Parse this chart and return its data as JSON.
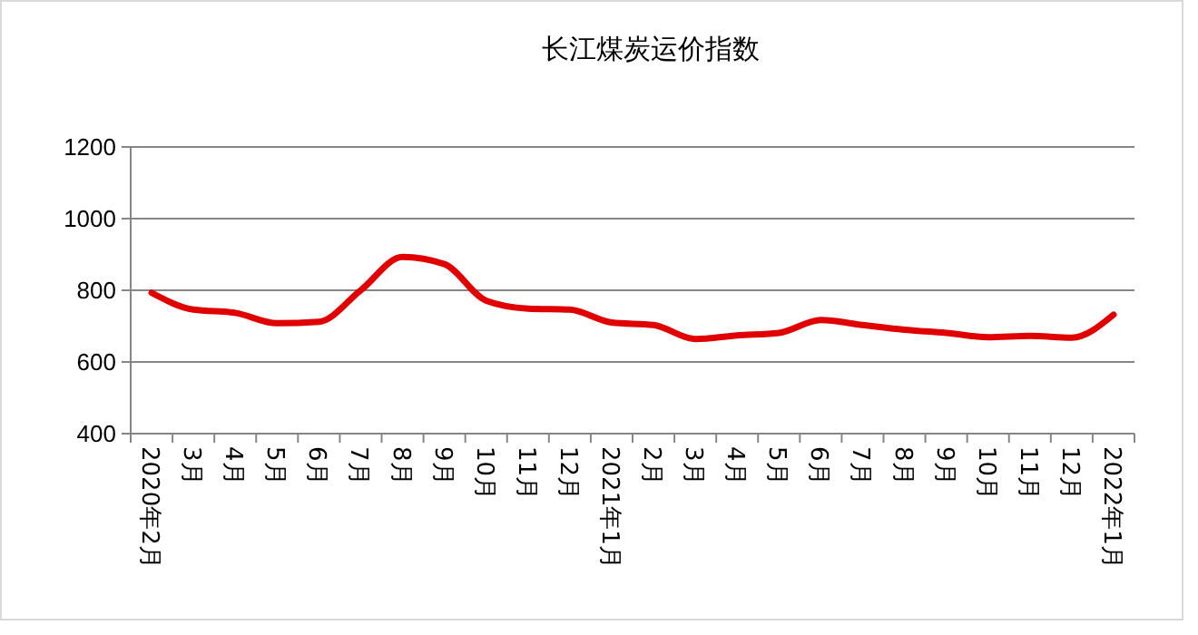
{
  "chart_data": {
    "type": "line",
    "title": "长江煤炭运价指数",
    "categories": [
      "2020年2月",
      "3月",
      "4月",
      "5月",
      "6月",
      "7月",
      "8月",
      "9月",
      "10月",
      "11月",
      "12月",
      "2021年1月",
      "2月",
      "3月",
      "4月",
      "5月",
      "6月",
      "7月",
      "8月",
      "9月",
      "10月",
      "11月",
      "12月",
      "2022年1月"
    ],
    "series": [
      {
        "color": "#e00000",
        "values": [
          793,
          746,
          737,
          708,
          712,
          800,
          893,
          873,
          771,
          749,
          746,
          710,
          703,
          664,
          674,
          681,
          717,
          703,
          690,
          681,
          669,
          673,
          668,
          732
        ]
      }
    ],
    "ylim": [
      400,
      1200
    ],
    "yticks": [
      400,
      600,
      800,
      1000,
      1200
    ],
    "grid": "y",
    "marker": "none",
    "line_style": "solid"
  }
}
